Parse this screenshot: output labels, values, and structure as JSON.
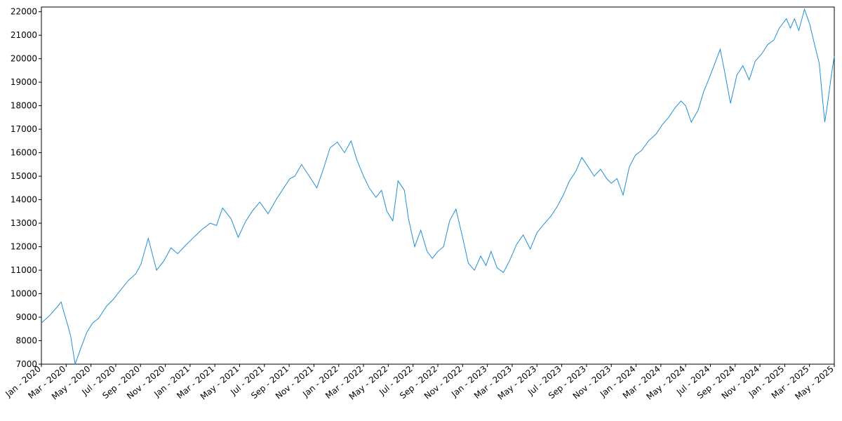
{
  "chart_data": {
    "type": "line",
    "title": "",
    "xlabel": "",
    "ylabel": "",
    "grid": false,
    "xlim": [
      "2020-01",
      "2025-05"
    ],
    "ylim": [
      7000,
      22200
    ],
    "yticks": [
      7000,
      8000,
      9000,
      10000,
      11000,
      12000,
      13000,
      14000,
      15000,
      16000,
      17000,
      18000,
      19000,
      20000,
      21000,
      22000
    ],
    "xticks": [
      "Jan - 2020",
      "Mar - 2020",
      "May - 2020",
      "Jul - 2020",
      "Sep - 2020",
      "Nov - 2020",
      "Jan - 2021",
      "Mar - 2021",
      "May - 2021",
      "Jul - 2021",
      "Sep - 2021",
      "Nov - 2021",
      "Jan - 2022",
      "Mar - 2022",
      "May - 2022",
      "Jul - 2022",
      "Sep - 2022",
      "Nov - 2022",
      "Jan - 2023",
      "Mar - 2023",
      "May - 2023",
      "Jul - 2023",
      "Sep - 2023",
      "Nov - 2023",
      "Jan - 2024",
      "Mar - 2024",
      "May - 2024",
      "Jul - 2024",
      "Sep - 2024",
      "Nov - 2024",
      "Jan - 2025",
      "Mar - 2025",
      "May - 2025"
    ],
    "series": [
      {
        "color": "#1f8fd6",
        "x": [
          "2020-01-01",
          "2020-01-20",
          "2020-02-10",
          "2020-02-19",
          "2020-02-26",
          "2020-03-05",
          "2020-03-12",
          "2020-03-23",
          "2020-04-07",
          "2020-04-21",
          "2020-05-05",
          "2020-05-20",
          "2020-06-08",
          "2020-06-25",
          "2020-07-15",
          "2020-08-01",
          "2020-08-20",
          "2020-09-02",
          "2020-09-20",
          "2020-10-10",
          "2020-10-28",
          "2020-11-15",
          "2020-12-01",
          "2020-12-20",
          "2021-01-10",
          "2021-02-01",
          "2021-02-20",
          "2021-03-05",
          "2021-03-20",
          "2021-04-10",
          "2021-04-28",
          "2021-05-15",
          "2021-06-01",
          "2021-06-20",
          "2021-07-10",
          "2021-08-01",
          "2021-08-20",
          "2021-09-03",
          "2021-09-15",
          "2021-10-01",
          "2021-10-20",
          "2021-11-08",
          "2021-11-25",
          "2021-12-10",
          "2021-12-28",
          "2022-01-15",
          "2022-02-01",
          "2022-02-15",
          "2022-03-01",
          "2022-03-15",
          "2022-04-01",
          "2022-04-15",
          "2022-04-28",
          "2022-05-12",
          "2022-05-25",
          "2022-06-10",
          "2022-06-20",
          "2022-07-05",
          "2022-07-20",
          "2022-08-05",
          "2022-08-18",
          "2022-09-01",
          "2022-09-15",
          "2022-09-30",
          "2022-10-15",
          "2022-10-30",
          "2022-11-15",
          "2022-11-30",
          "2022-12-15",
          "2022-12-28",
          "2023-01-10",
          "2023-01-25",
          "2023-02-10",
          "2023-02-25",
          "2023-03-12",
          "2023-03-28",
          "2023-04-15",
          "2023-05-01",
          "2023-05-20",
          "2023-06-05",
          "2023-06-20",
          "2023-07-05",
          "2023-07-20",
          "2023-08-05",
          "2023-08-20",
          "2023-09-05",
          "2023-09-20",
          "2023-10-05",
          "2023-10-20",
          "2023-11-01",
          "2023-11-15",
          "2023-11-30",
          "2023-12-15",
          "2023-12-30",
          "2024-01-15",
          "2024-02-01",
          "2024-02-20",
          "2024-03-05",
          "2024-03-20",
          "2024-04-05",
          "2024-04-20",
          "2024-05-01",
          "2024-05-15",
          "2024-06-01",
          "2024-06-15",
          "2024-07-01",
          "2024-07-12",
          "2024-07-25",
          "2024-08-05",
          "2024-08-20",
          "2024-09-05",
          "2024-09-20",
          "2024-10-05",
          "2024-10-20",
          "2024-11-05",
          "2024-11-20",
          "2024-12-05",
          "2024-12-18",
          "2025-01-05",
          "2025-01-15",
          "2025-01-25",
          "2025-02-05",
          "2025-02-19",
          "2025-03-01",
          "2025-03-12",
          "2025-03-25",
          "2025-04-01",
          "2025-04-08",
          "2025-04-15",
          "2025-04-25",
          "2025-05-05"
        ],
        "values": [
          8750,
          9050,
          9450,
          9650,
          9200,
          8650,
          8200,
          7000,
          7700,
          8350,
          8750,
          8950,
          9450,
          9750,
          10200,
          10550,
          10850,
          11250,
          12350,
          11000,
          11400,
          11950,
          11700,
          12050,
          12400,
          12750,
          13000,
          12900,
          13650,
          13200,
          12400,
          13050,
          13500,
          13900,
          13400,
          14050,
          14550,
          14900,
          15000,
          15500,
          15000,
          14500,
          15350,
          16200,
          16450,
          16000,
          16500,
          15700,
          15000,
          14500,
          14100,
          14400,
          13500,
          13100,
          14800,
          14400,
          13200,
          12000,
          12700,
          11800,
          11500,
          11800,
          12000,
          13100,
          13600,
          12500,
          11300,
          11000,
          11600,
          11200,
          11800,
          11100,
          10900,
          11400,
          12100,
          12500,
          11900,
          12600,
          13000,
          13300,
          13700,
          14200,
          14800,
          15200,
          15800,
          15400,
          15000,
          15300,
          14900,
          14700,
          14900,
          14200,
          15400,
          15900,
          16100,
          16500,
          16800,
          17200,
          17500,
          17900,
          18200,
          18000,
          17300,
          17800,
          18600,
          19300,
          19800,
          20400,
          19500,
          18100,
          19300,
          19700,
          19100,
          19900,
          20200,
          20600,
          20800,
          21300,
          21700,
          21300,
          21700,
          21200,
          22100,
          21500,
          20700,
          19800,
          18600,
          17300,
          18100,
          19400,
          20100
        ]
      }
    ]
  }
}
